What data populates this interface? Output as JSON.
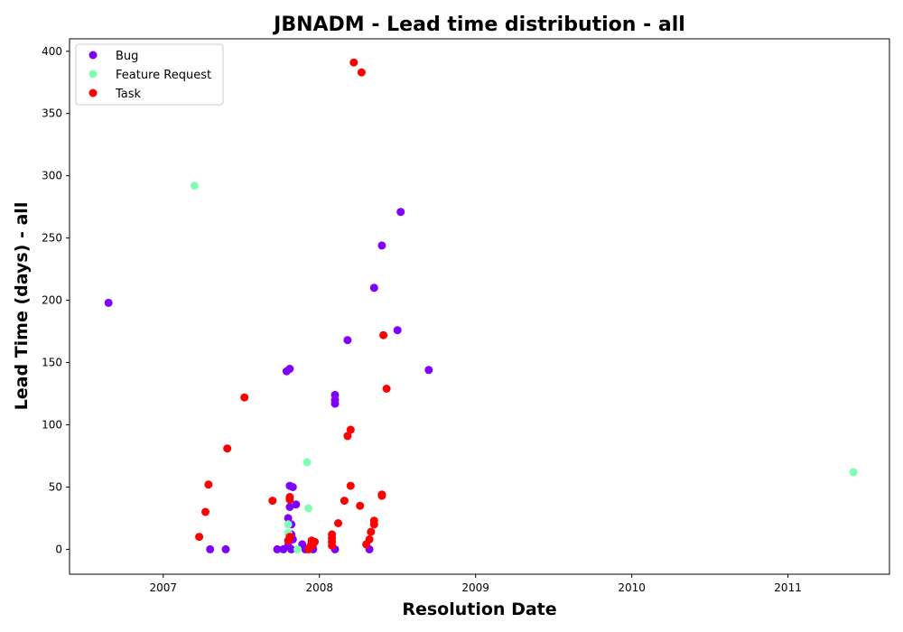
{
  "chart_data": {
    "type": "scatter",
    "title": "JBNADM - Lead time distribution - all",
    "xlabel": "Resolution Date",
    "ylabel": "Lead Time (days) - all",
    "xlim": [
      2006.4,
      2011.65
    ],
    "ylim": [
      -20,
      410
    ],
    "x_ticks": [
      2007,
      2008,
      2009,
      2010,
      2011
    ],
    "x_tick_labels": [
      "2007",
      "2008",
      "2009",
      "2010",
      "2011"
    ],
    "y_ticks": [
      0,
      50,
      100,
      150,
      200,
      250,
      300,
      350,
      400
    ],
    "y_tick_labels": [
      "0",
      "50",
      "100",
      "150",
      "200",
      "250",
      "300",
      "350",
      "400"
    ],
    "grid": false,
    "legend": {
      "placement": "upper-left",
      "entries": [
        "Bug",
        "Feature Request",
        "Task"
      ]
    },
    "series": [
      {
        "name": "Bug",
        "color": "#8000ff",
        "points": [
          {
            "x": 2006.65,
            "y": 198
          },
          {
            "x": 2007.3,
            "y": 0
          },
          {
            "x": 2007.4,
            "y": 0
          },
          {
            "x": 2007.73,
            "y": 0
          },
          {
            "x": 2007.77,
            "y": 0
          },
          {
            "x": 2007.79,
            "y": 143
          },
          {
            "x": 2007.81,
            "y": 145
          },
          {
            "x": 2007.81,
            "y": 51
          },
          {
            "x": 2007.83,
            "y": 50
          },
          {
            "x": 2007.85,
            "y": 36
          },
          {
            "x": 2007.81,
            "y": 34
          },
          {
            "x": 2007.8,
            "y": 25
          },
          {
            "x": 2007.82,
            "y": 20
          },
          {
            "x": 2007.82,
            "y": 12
          },
          {
            "x": 2007.83,
            "y": 8
          },
          {
            "x": 2007.8,
            "y": 3
          },
          {
            "x": 2007.82,
            "y": 0
          },
          {
            "x": 2007.89,
            "y": 4
          },
          {
            "x": 2007.91,
            "y": 0
          },
          {
            "x": 2007.96,
            "y": 0
          },
          {
            "x": 2008.1,
            "y": 124
          },
          {
            "x": 2008.1,
            "y": 120
          },
          {
            "x": 2008.1,
            "y": 117
          },
          {
            "x": 2008.1,
            "y": 0
          },
          {
            "x": 2008.18,
            "y": 168
          },
          {
            "x": 2008.32,
            "y": 0
          },
          {
            "x": 2008.35,
            "y": 210
          },
          {
            "x": 2008.4,
            "y": 244
          },
          {
            "x": 2008.5,
            "y": 176
          },
          {
            "x": 2008.52,
            "y": 271
          },
          {
            "x": 2008.7,
            "y": 144
          }
        ]
      },
      {
        "name": "Feature Request",
        "color": "#80ffb4",
        "points": [
          {
            "x": 2007.2,
            "y": 292
          },
          {
            "x": 2007.8,
            "y": 20
          },
          {
            "x": 2007.8,
            "y": 13
          },
          {
            "x": 2007.86,
            "y": 0
          },
          {
            "x": 2007.92,
            "y": 70
          },
          {
            "x": 2007.93,
            "y": 33
          },
          {
            "x": 2011.42,
            "y": 62
          }
        ]
      },
      {
        "name": "Task",
        "color": "#ff0000",
        "points": [
          {
            "x": 2007.23,
            "y": 10
          },
          {
            "x": 2007.27,
            "y": 30
          },
          {
            "x": 2007.29,
            "y": 52
          },
          {
            "x": 2007.41,
            "y": 81
          },
          {
            "x": 2007.52,
            "y": 122
          },
          {
            "x": 2007.7,
            "y": 39
          },
          {
            "x": 2007.81,
            "y": 42
          },
          {
            "x": 2007.81,
            "y": 40
          },
          {
            "x": 2007.81,
            "y": 10
          },
          {
            "x": 2007.8,
            "y": 7
          },
          {
            "x": 2007.93,
            "y": 0
          },
          {
            "x": 2007.94,
            "y": 2
          },
          {
            "x": 2007.95,
            "y": 5
          },
          {
            "x": 2007.95,
            "y": 7
          },
          {
            "x": 2007.96,
            "y": 4
          },
          {
            "x": 2007.97,
            "y": 6
          },
          {
            "x": 2008.08,
            "y": 12
          },
          {
            "x": 2008.08,
            "y": 9
          },
          {
            "x": 2008.08,
            "y": 6
          },
          {
            "x": 2008.08,
            "y": 3
          },
          {
            "x": 2008.12,
            "y": 21
          },
          {
            "x": 2008.16,
            "y": 39
          },
          {
            "x": 2008.18,
            "y": 91
          },
          {
            "x": 2008.2,
            "y": 96
          },
          {
            "x": 2008.2,
            "y": 51
          },
          {
            "x": 2008.22,
            "y": 391
          },
          {
            "x": 2008.26,
            "y": 35
          },
          {
            "x": 2008.27,
            "y": 383
          },
          {
            "x": 2008.3,
            "y": 4
          },
          {
            "x": 2008.32,
            "y": 8
          },
          {
            "x": 2008.33,
            "y": 14
          },
          {
            "x": 2008.35,
            "y": 20
          },
          {
            "x": 2008.35,
            "y": 23
          },
          {
            "x": 2008.4,
            "y": 44
          },
          {
            "x": 2008.4,
            "y": 43
          },
          {
            "x": 2008.41,
            "y": 172
          },
          {
            "x": 2008.43,
            "y": 129
          }
        ]
      }
    ]
  }
}
